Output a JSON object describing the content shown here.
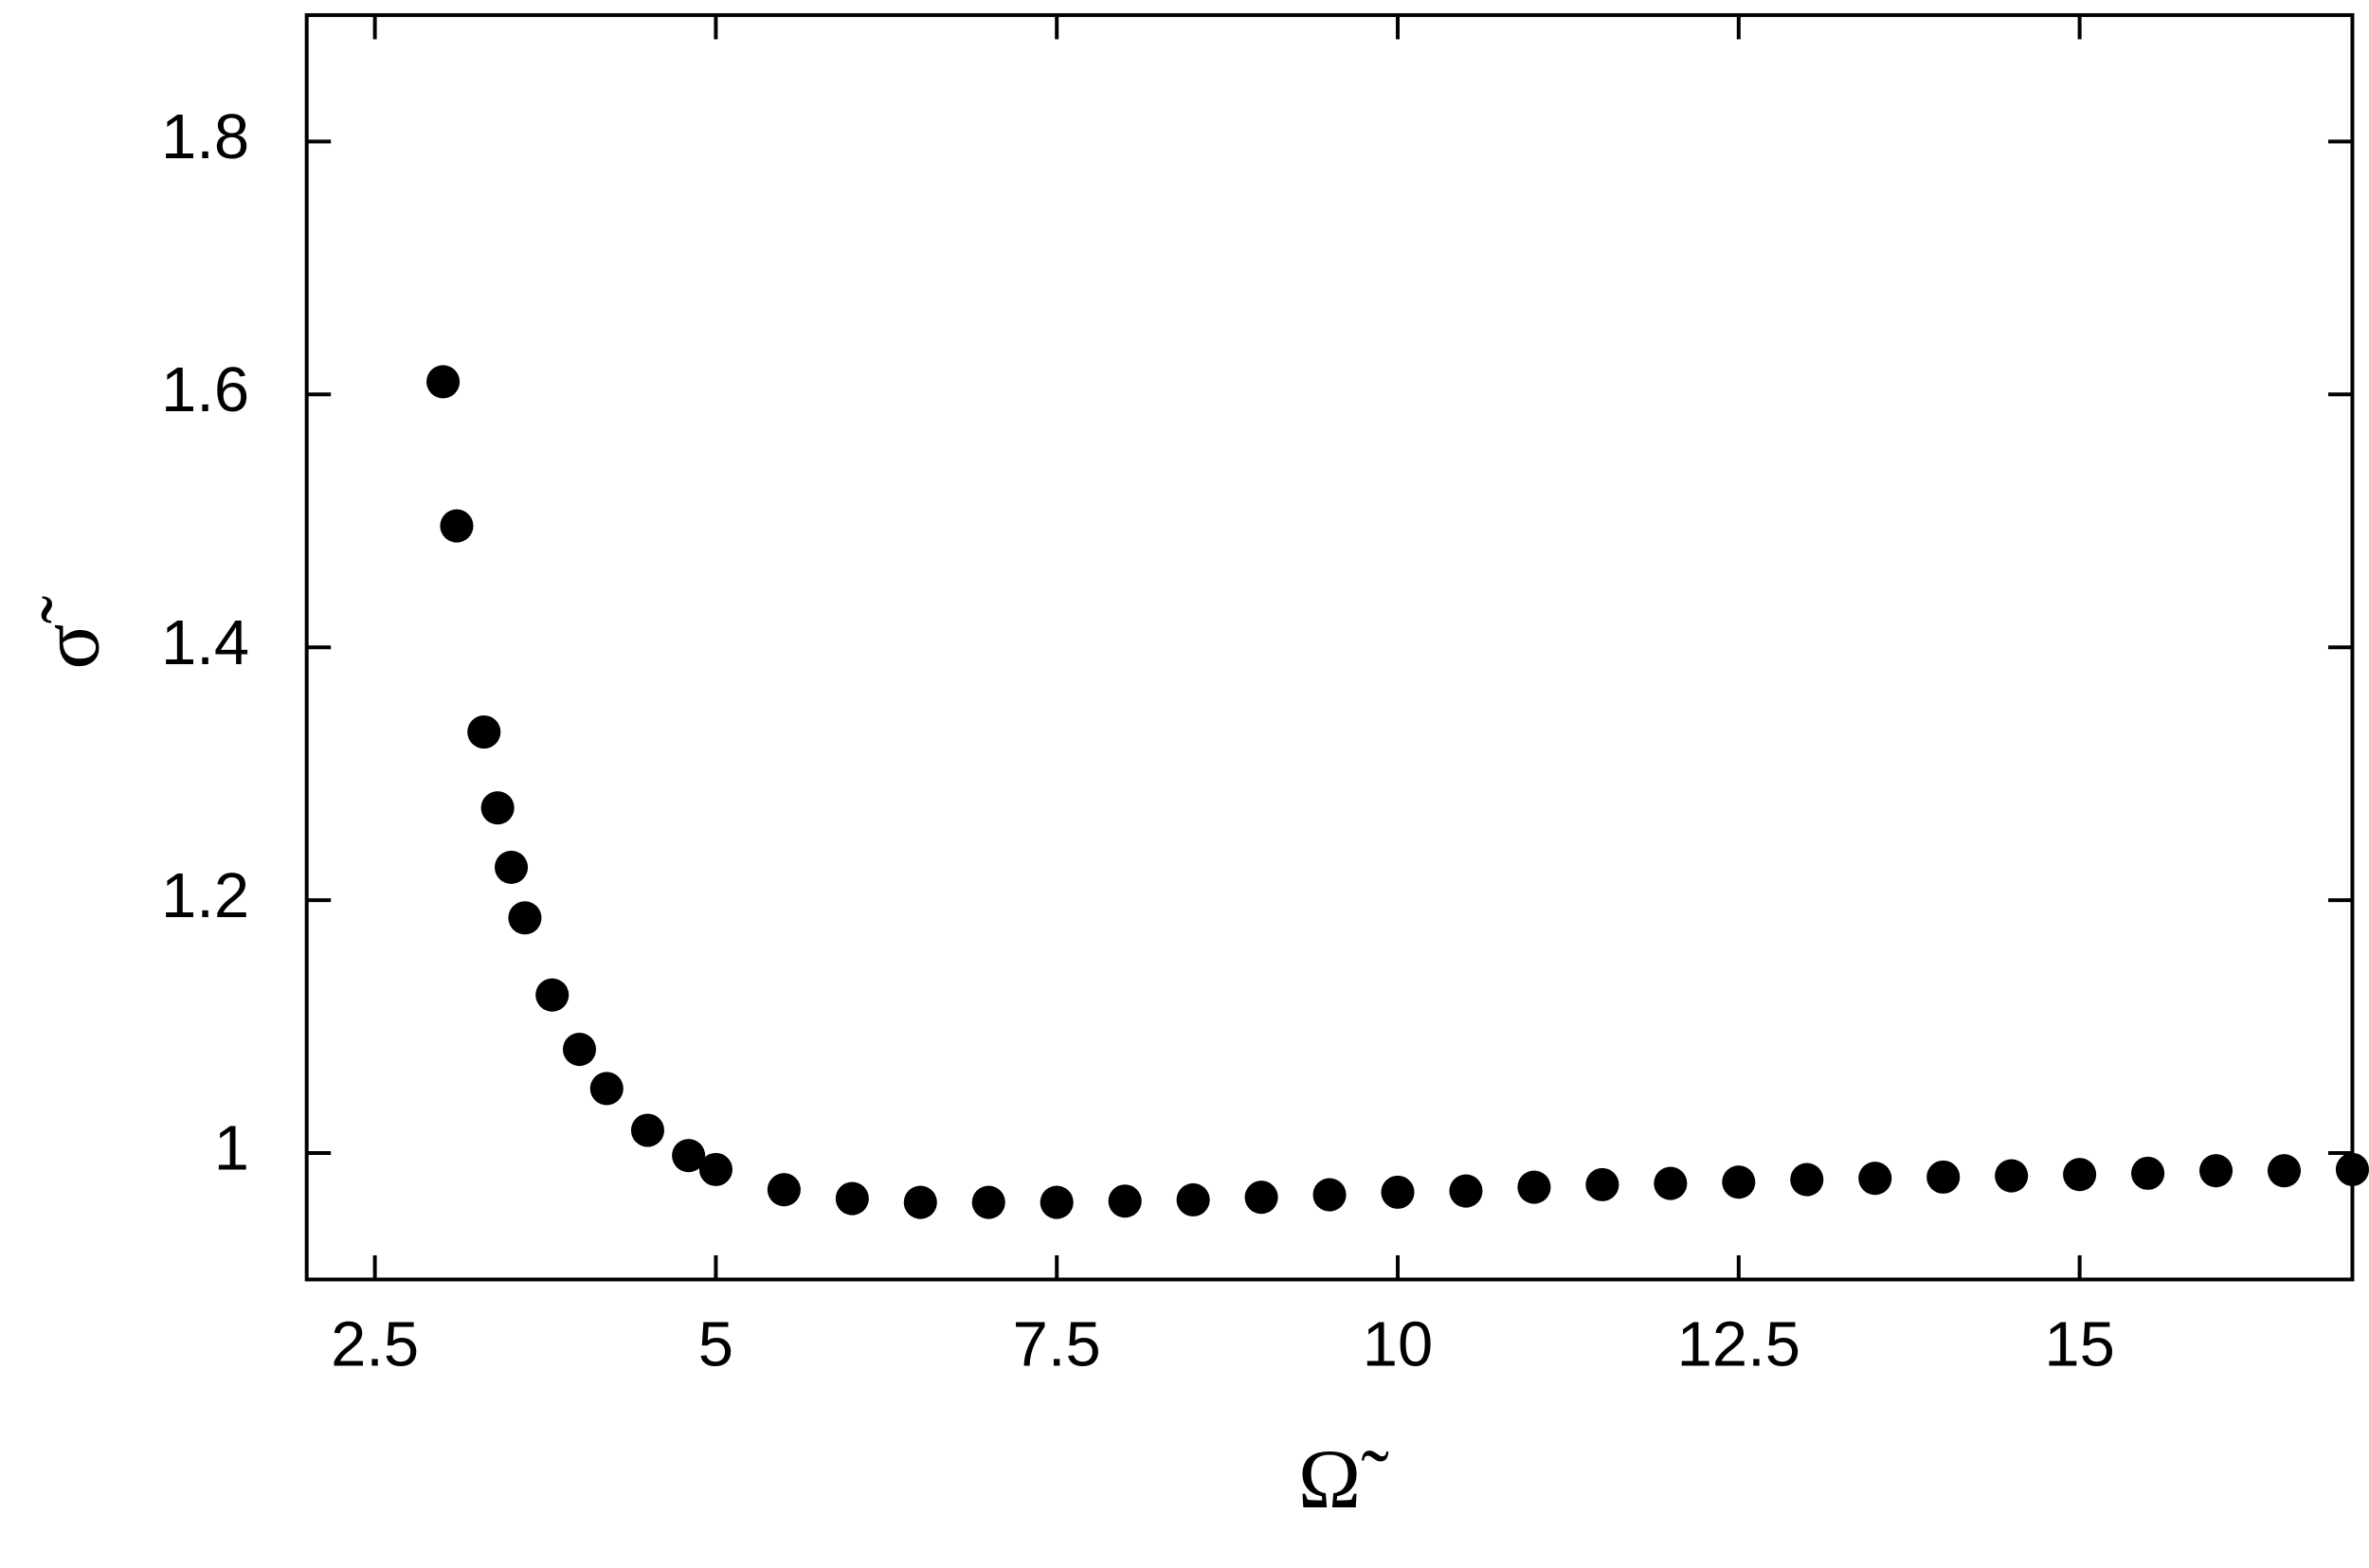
{
  "chart_data": {
    "type": "scatter",
    "x_label": "Ω̃",
    "y_label": "σ̃",
    "x": [
      3.0,
      3.1,
      3.3,
      3.4,
      3.5,
      3.6,
      3.8,
      4.0,
      4.2,
      4.5,
      4.8,
      5.0,
      5.5,
      6.0,
      6.5,
      7.0,
      7.5,
      8.0,
      8.5,
      9.0,
      9.5,
      10.0,
      10.5,
      11.0,
      11.5,
      12.0,
      12.5,
      13.0,
      13.5,
      14.0,
      14.5,
      15.0,
      15.5,
      16.0,
      16.5,
      17.0
    ],
    "series": [
      {
        "name": "σ̃",
        "color": "#000000",
        "values": [
          1.61,
          1.496,
          1.333,
          1.273,
          1.226,
          1.186,
          1.125,
          1.082,
          1.051,
          1.018,
          0.998,
          0.987,
          0.971,
          0.964,
          0.961,
          0.961,
          0.961,
          0.962,
          0.963,
          0.965,
          0.967,
          0.969,
          0.97,
          0.973,
          0.975,
          0.976,
          0.977,
          0.979,
          0.98,
          0.981,
          0.982,
          0.983,
          0.984,
          0.986,
          0.986,
          0.987
        ]
      }
    ],
    "xlim": [
      2,
      17
    ],
    "ylim": [
      0.9,
      1.9
    ],
    "xticks": [
      2.5,
      5,
      7.5,
      10,
      12.5,
      15
    ],
    "yticks": [
      1,
      1.2,
      1.4,
      1.6,
      1.8
    ],
    "grid": false
  }
}
